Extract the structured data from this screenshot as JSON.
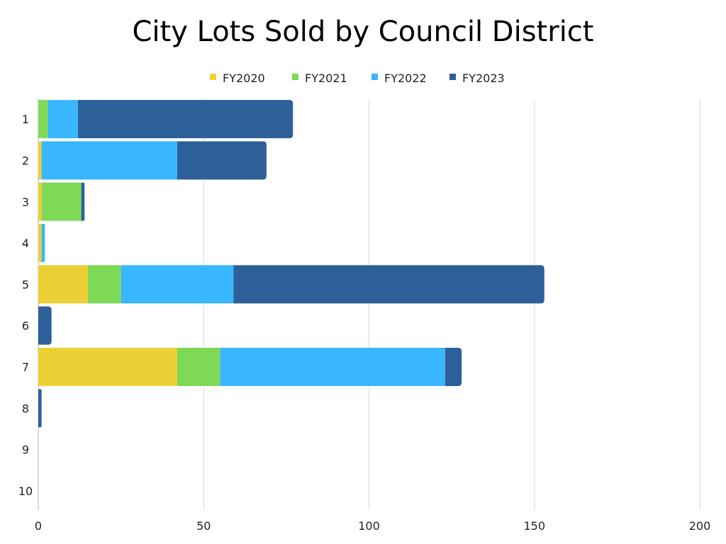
{
  "chart_data": {
    "type": "bar",
    "orientation": "horizontal",
    "stacked": true,
    "title": "City Lots Sold by Council District",
    "xlabel": "",
    "ylabel": "",
    "categories": [
      "1",
      "2",
      "3",
      "4",
      "5",
      "6",
      "7",
      "8",
      "9",
      "10"
    ],
    "xlim": [
      0,
      200
    ],
    "xticks": [
      0,
      50,
      100,
      150,
      200
    ],
    "grid": true,
    "legend_position": "top",
    "series": [
      {
        "name": "FY2020",
        "color": "#EDD035",
        "values": [
          0,
          1,
          1,
          1,
          15,
          0,
          42,
          0,
          0,
          0
        ]
      },
      {
        "name": "FY2021",
        "color": "#7ED957",
        "values": [
          3,
          0,
          12,
          0,
          10,
          0,
          13,
          0,
          0,
          0
        ]
      },
      {
        "name": "FY2022",
        "color": "#38B6FF",
        "values": [
          9,
          41,
          0,
          1,
          34,
          0,
          68,
          0,
          0,
          0
        ]
      },
      {
        "name": "FY2023",
        "color": "#2D6099",
        "values": [
          65,
          27,
          1,
          0,
          94,
          4,
          5,
          1,
          0,
          0
        ]
      }
    ]
  }
}
